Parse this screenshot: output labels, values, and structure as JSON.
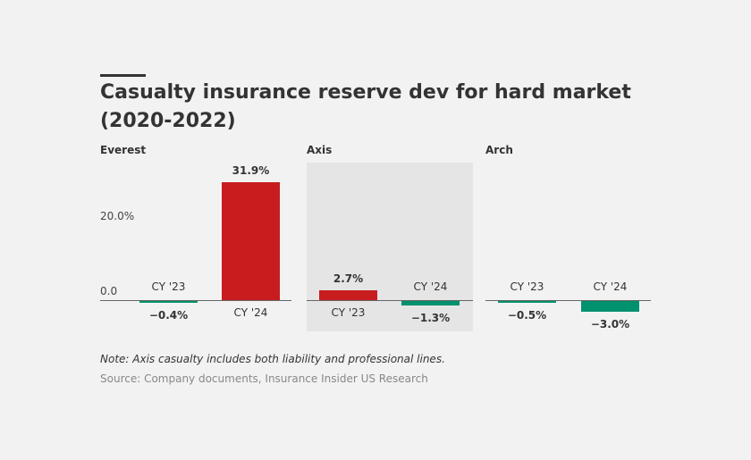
{
  "chart_data": {
    "type": "bar",
    "title": "Casualty insurance reserve dev for hard market (2020-2022)",
    "categories": [
      "CY '23",
      "CY '24"
    ],
    "panels": [
      {
        "name": "Everest",
        "values": [
          -0.4,
          31.9
        ],
        "labels": [
          "−0.4%",
          "31.9%"
        ],
        "highlight": false
      },
      {
        "name": "Axis",
        "values": [
          2.7,
          -1.3
        ],
        "labels": [
          "2.7%",
          "−1.3%"
        ],
        "highlight": true
      },
      {
        "name": "Arch",
        "values": [
          -0.5,
          -3.0
        ],
        "labels": [
          "−0.5%",
          "−3.0%"
        ],
        "highlight": false
      }
    ],
    "yticks": [
      {
        "value": 0,
        "label": "0.0"
      },
      {
        "value": 20,
        "label": "20.0%"
      }
    ],
    "ylim": [
      -3.0,
      31.9
    ],
    "colors": {
      "positive": "#c81d1e",
      "negative": "#00916e",
      "highlight_bg": "#e5e5e5"
    }
  },
  "note": "Note: Axis casualty includes both liability and professional lines.",
  "source": "Source: Company documents, Insurance Insider US Research"
}
